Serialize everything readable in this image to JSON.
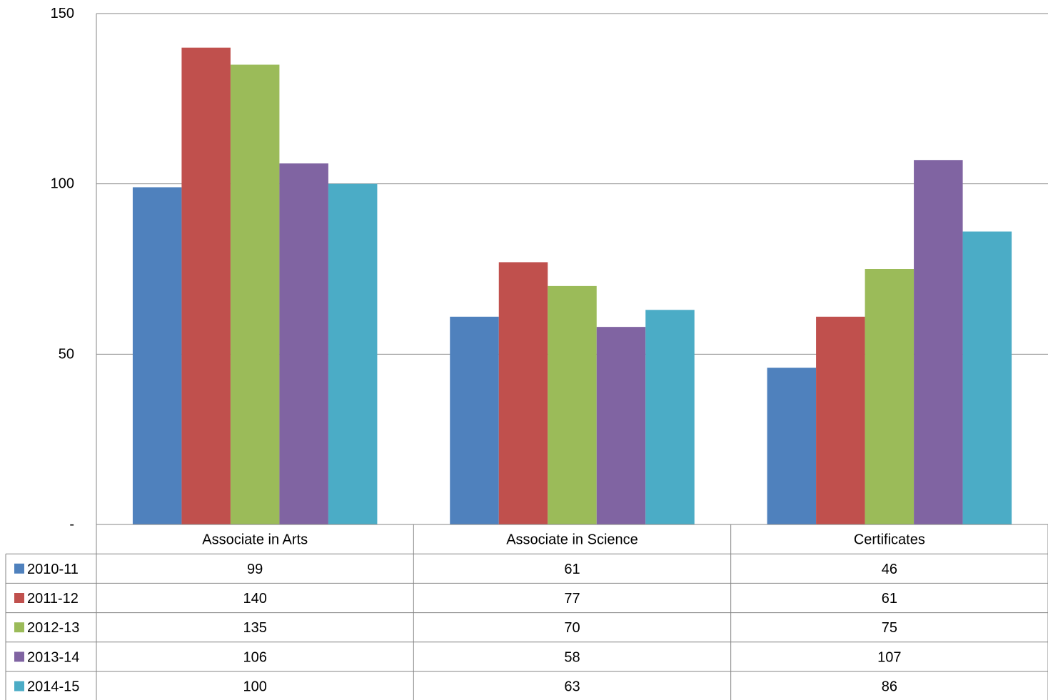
{
  "chart_data": {
    "type": "bar",
    "categories": [
      "Associate in Arts",
      "Associate in Science",
      "Certificates"
    ],
    "series": [
      {
        "name": "2010-11",
        "color": "#4F81BD",
        "values": [
          99,
          61,
          46
        ]
      },
      {
        "name": "2011-12",
        "color": "#C0504D",
        "values": [
          140,
          77,
          61
        ]
      },
      {
        "name": "2012-13",
        "color": "#9BBB59",
        "values": [
          135,
          70,
          75
        ]
      },
      {
        "name": "2013-14",
        "color": "#8064A2",
        "values": [
          106,
          58,
          107
        ]
      },
      {
        "name": "2014-15",
        "color": "#4BACC6",
        "values": [
          100,
          63,
          86
        ]
      }
    ],
    "ylim": [
      0,
      150
    ],
    "yticks": [
      {
        "value": 0,
        "label": "-"
      },
      {
        "value": 50,
        "label": "50"
      },
      {
        "value": 100,
        "label": "100"
      },
      {
        "value": 150,
        "label": "150"
      }
    ],
    "grid": true,
    "legend": "data-table-below",
    "data_table": true
  }
}
